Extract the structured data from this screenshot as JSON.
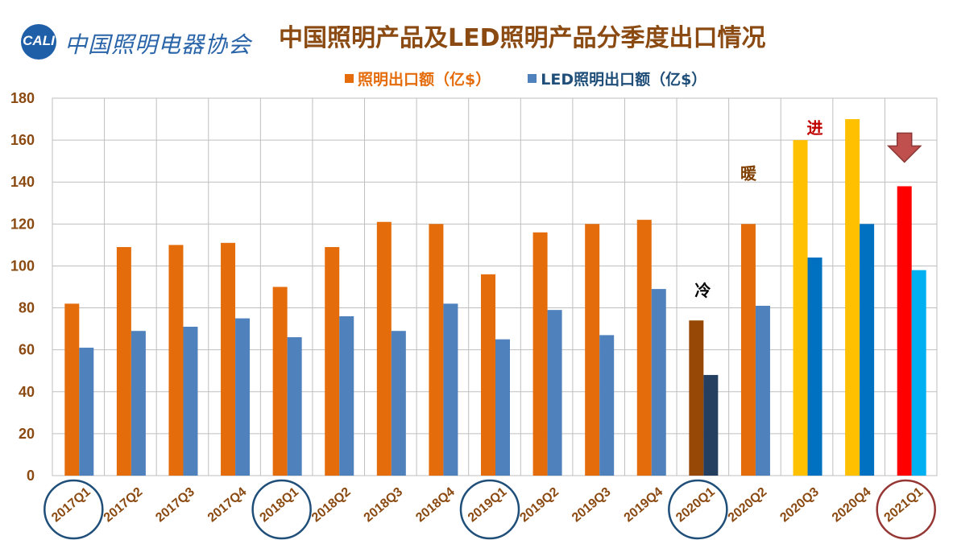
{
  "header": {
    "logo_abbr": "CALI",
    "logo_text": "中国照明电器协会",
    "title": "中国照明产品及LED照明产品分季度出口情况"
  },
  "colors": {
    "lighting": "#e46c0a",
    "led": "#4f81bd",
    "text": "#8a4a12",
    "grid": "#bfbfbf",
    "circle_blue": "#1f4e79",
    "circle_red": "#953735"
  },
  "chart_data": {
    "type": "bar",
    "title": "中国照明产品及LED照明产品分季度出口情况",
    "categories": [
      "2017Q1",
      "2017Q2",
      "2017Q3",
      "2017Q4",
      "2018Q1",
      "2018Q2",
      "2018Q3",
      "2018Q4",
      "2019Q1",
      "2019Q2",
      "2019Q3",
      "2019Q4",
      "2020Q1",
      "2020Q2",
      "2020Q3",
      "2020Q4",
      "2021Q1"
    ],
    "series": [
      {
        "name": "照明出口额（亿$）",
        "color": "#e46c0a",
        "values": [
          82,
          109,
          110,
          111,
          90,
          109,
          121,
          120,
          96,
          116,
          120,
          122,
          74,
          120,
          160,
          170,
          138
        ],
        "point_colors": {
          "12": "#974706",
          "14": "#ffc000",
          "15": "#ffc000",
          "16": "#ff0000"
        }
      },
      {
        "name": "LED照明出口额（亿$）",
        "color": "#4f81bd",
        "values": [
          61,
          69,
          71,
          75,
          66,
          76,
          69,
          82,
          65,
          79,
          67,
          89,
          48,
          81,
          104,
          120,
          98
        ],
        "point_colors": {
          "12": "#243f60",
          "14": "#0070c0",
          "15": "#0070c0",
          "16": "#00b0f0"
        }
      }
    ],
    "ylim": [
      0,
      180
    ],
    "yticks": [
      0,
      20,
      40,
      60,
      80,
      100,
      120,
      140,
      160,
      180
    ],
    "grid": true,
    "legend_position": "top",
    "annotations": [
      {
        "text": "冷",
        "category_index": 12,
        "color": "#000000"
      },
      {
        "text": "暖",
        "category_index": 13,
        "color": "#7f3f00"
      },
      {
        "text": "进",
        "category_index": 14,
        "color": "#c00000"
      }
    ],
    "arrow": {
      "category_index": 16,
      "color": "#c0504d",
      "shape": "down-arrow-icon"
    },
    "circled_categories": [
      {
        "index": 0,
        "color": "#1f4e79"
      },
      {
        "index": 4,
        "color": "#1f4e79"
      },
      {
        "index": 8,
        "color": "#1f4e79"
      },
      {
        "index": 12,
        "color": "#1f4e79"
      },
      {
        "index": 16,
        "color": "#953735"
      }
    ]
  }
}
